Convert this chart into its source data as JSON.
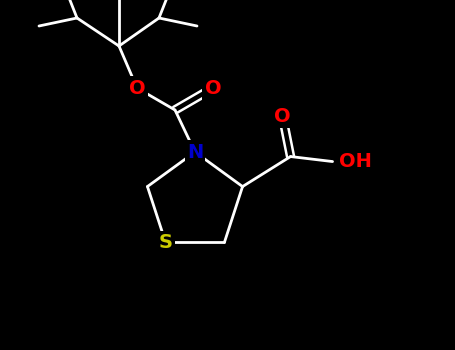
{
  "bg_color": "#000000",
  "atom_colors": {
    "O": "#ff0000",
    "N": "#0000cc",
    "S": "#cccc00",
    "C": "#000000"
  },
  "figsize": [
    4.55,
    3.5
  ],
  "dpi": 100,
  "lw": 2.0,
  "fs": 14
}
